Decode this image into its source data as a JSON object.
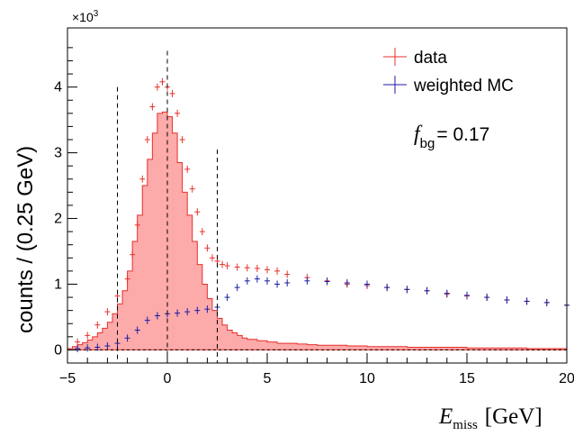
{
  "chart_data": {
    "type": "histogram",
    "xlabel": "E",
    "xlabel_sub": "miss",
    "xlabel_unit": "[GeV]",
    "ylabel": "counts / (0.25 GeV)",
    "y_multiplier": "×10",
    "y_multiplier_exp": "3",
    "xlim": [
      -5,
      20
    ],
    "ylim": [
      -0.2,
      4.9
    ],
    "x_ticks": [
      "−5",
      "0",
      "5",
      "10",
      "15",
      "20"
    ],
    "y_ticks": [
      "0",
      "1",
      "2",
      "3",
      "4"
    ],
    "fbg_label": "f",
    "fbg_sub": "bg",
    "fbg_value": "= 0.17",
    "cut_lines_x": [
      -2.5,
      0,
      2.5
    ],
    "colors": {
      "data": "#e8302a",
      "mc": "#1b1ba6",
      "fill": "#fcaaaa",
      "fill_line": "#e8302a"
    },
    "series": [
      {
        "name": "data",
        "x": [
          -4.5,
          -4.0,
          -3.5,
          -3.0,
          -2.5,
          -2.0,
          -1.75,
          -1.5,
          -1.25,
          -1.0,
          -0.75,
          -0.5,
          -0.25,
          0.0,
          0.25,
          0.5,
          0.75,
          1.0,
          1.25,
          1.5,
          1.75,
          2.0,
          2.25,
          2.5,
          2.75,
          3.0,
          3.5,
          4.0,
          4.5,
          5.0,
          5.5,
          6.0,
          7.0,
          8.0,
          9.0,
          10.0,
          11.0,
          12.0,
          13.0,
          14.0,
          15.0,
          16.0,
          17.0,
          18.0,
          19.0,
          20.0
        ],
        "values": [
          0.12,
          0.22,
          0.38,
          0.58,
          0.82,
          1.08,
          1.45,
          1.9,
          2.6,
          3.2,
          3.7,
          4.0,
          4.08,
          4.0,
          3.9,
          3.6,
          3.2,
          2.75,
          2.45,
          2.1,
          1.8,
          1.55,
          1.4,
          1.35,
          1.3,
          1.28,
          1.26,
          1.25,
          1.24,
          1.22,
          1.2,
          1.15,
          1.1,
          1.05,
          1.0,
          0.98,
          0.95,
          0.92,
          0.9,
          0.85,
          0.82,
          0.8,
          0.76,
          0.74,
          0.72,
          0.68
        ]
      },
      {
        "name": "weighted MC",
        "x": [
          -4.5,
          -4.0,
          -3.5,
          -3.0,
          -2.5,
          -2.0,
          -1.5,
          -1.0,
          -0.5,
          0.0,
          0.5,
          1.0,
          1.5,
          2.0,
          2.5,
          3.0,
          3.5,
          4.0,
          4.5,
          5.0,
          5.5,
          6.0,
          7.0,
          8.0,
          9.0,
          10.0,
          11.0,
          12.0,
          13.0,
          14.0,
          15.0,
          16.0,
          17.0,
          18.0,
          19.0,
          20.0
        ],
        "values": [
          0.02,
          0.03,
          0.04,
          0.06,
          0.1,
          0.18,
          0.3,
          0.45,
          0.52,
          0.55,
          0.56,
          0.58,
          0.6,
          0.62,
          0.65,
          0.8,
          0.95,
          1.05,
          1.08,
          1.05,
          1.0,
          1.02,
          1.05,
          1.04,
          1.02,
          1.0,
          0.95,
          0.92,
          0.9,
          0.86,
          0.83,
          0.8,
          0.76,
          0.74,
          0.72,
          0.68
        ]
      },
      {
        "name": "",
        "x": [
          -5.0,
          -4.75,
          -4.5,
          -4.25,
          -4.0,
          -3.75,
          -3.5,
          -3.25,
          -3.0,
          -2.75,
          -2.5,
          -2.25,
          -2.0,
          -1.75,
          -1.5,
          -1.25,
          -1.0,
          -0.75,
          -0.5,
          -0.25,
          0.0,
          0.25,
          0.5,
          0.75,
          1.0,
          1.25,
          1.5,
          1.75,
          2.0,
          2.25,
          2.5,
          2.75,
          3.0,
          3.25,
          3.5,
          3.75,
          4.0,
          4.5,
          5.0,
          5.5,
          6.0,
          6.5,
          7.0,
          7.5,
          8.0,
          9.0,
          10.0,
          11.0,
          12.0,
          13.0,
          14.0,
          15.0,
          16.0,
          17.0,
          18.0,
          19.0,
          19.75
        ],
        "values": [
          0.02,
          0.05,
          0.08,
          0.11,
          0.15,
          0.2,
          0.26,
          0.33,
          0.42,
          0.55,
          0.7,
          0.9,
          1.2,
          1.65,
          2.05,
          2.5,
          2.9,
          3.3,
          3.6,
          3.62,
          3.55,
          3.3,
          2.85,
          2.4,
          2.05,
          1.65,
          1.3,
          1.0,
          0.78,
          0.6,
          0.48,
          0.38,
          0.3,
          0.26,
          0.22,
          0.18,
          0.16,
          0.14,
          0.12,
          0.1,
          0.1,
          0.09,
          0.08,
          0.07,
          0.07,
          0.06,
          0.05,
          0.05,
          0.04,
          0.04,
          0.04,
          0.03,
          0.03,
          0.03,
          0.02,
          0.02,
          0.02
        ]
      }
    ]
  }
}
